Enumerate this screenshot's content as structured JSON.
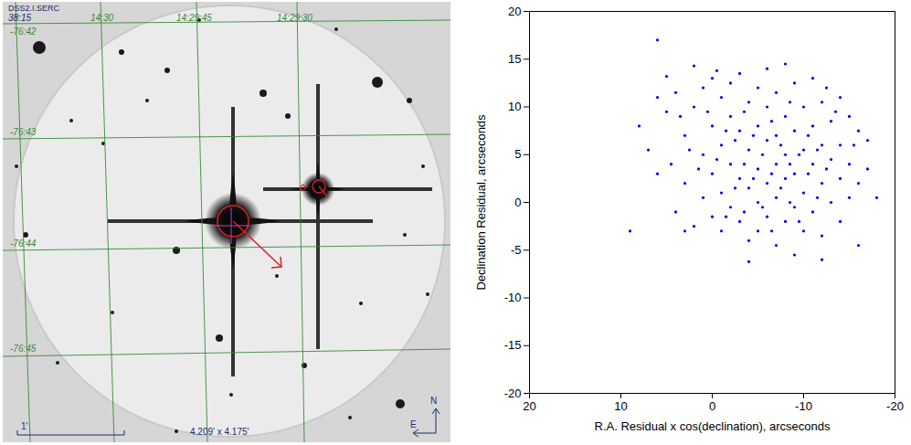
{
  "image_panel": {
    "survey": "DSS2.I.SERC",
    "ra_labels": [
      "38:15",
      "14:30",
      "14:29:45",
      "14:29:30"
    ],
    "dec_labels": [
      "-76:42",
      "-76:43",
      "-76:44",
      "-76:45"
    ],
    "scale_bar": "1'",
    "field_size": "4.209' x 4.175'",
    "compass": [
      "N",
      "E"
    ]
  },
  "chart_data": {
    "type": "scatter",
    "xlabel": "R.A. Residual x cos(declination), arcseconds",
    "ylabel": "Declination Residual, arcseconds",
    "color": "#0000ff",
    "marker": "circle",
    "grid": false,
    "xlim": [
      20,
      -20
    ],
    "ylim": [
      -20,
      20
    ],
    "xticks": [
      20,
      10,
      0,
      -10,
      -20
    ],
    "yticks": [
      -20,
      -15,
      -10,
      -5,
      0,
      5,
      10,
      15,
      20
    ],
    "x": [
      6,
      9,
      -18,
      -16,
      -12,
      -4,
      2,
      -8,
      -17,
      -15,
      5,
      7,
      6,
      5,
      4,
      4,
      3,
      3,
      2,
      2,
      1,
      1,
      1,
      0,
      0,
      0,
      0,
      -1,
      -1,
      -1,
      -1,
      -2,
      -2,
      -2,
      -2,
      -3,
      -3,
      -3,
      -3,
      -4,
      -4,
      -4,
      -4,
      -5,
      -5,
      -5,
      -5,
      -5,
      -6,
      -6,
      -6,
      -6,
      -6,
      -7,
      -7,
      -7,
      -7,
      -7,
      -8,
      -8,
      -8,
      -8,
      -9,
      -9,
      -9,
      -9,
      -9,
      -10,
      -10,
      -10,
      -10,
      -11,
      -11,
      -11,
      -11,
      -12,
      -12,
      -12,
      -12,
      -13,
      -13,
      -13,
      -14,
      -14,
      -14,
      -14,
      -15,
      -15,
      -16,
      -16,
      -17,
      8,
      6,
      3,
      1.5,
      -0.5,
      -2.5,
      -3.5,
      -4.5,
      -5.5,
      -6.5,
      -7.5,
      -8.5,
      -9.5,
      -10.5,
      -11.5,
      -12.5,
      -6.5,
      -3.5,
      -8.5,
      0.5,
      -1.5,
      -4.5,
      -7.5,
      -10.5,
      -13.5,
      2.5,
      4.5,
      -2.5,
      -5.5,
      -8.5,
      -11.5,
      -3.5,
      -6.5,
      -1.5,
      -9.5,
      3.5,
      -12.5,
      -15.5,
      -0.5
    ],
    "y": [
      17,
      -3,
      0.5,
      -4.5,
      -6,
      -6.2,
      14.3,
      14.5,
      6.5,
      9,
      13.2,
      5.5,
      3,
      9.5,
      11.5,
      -1,
      7,
      2,
      10,
      -2.5,
      12,
      5,
      0.5,
      13,
      8,
      3,
      -1.5,
      11,
      6,
      1,
      -3,
      12.5,
      9,
      4,
      -0.5,
      13.5,
      7.5,
      2.5,
      -2,
      10.5,
      5.5,
      1.5,
      -4,
      12,
      8,
      3.5,
      0,
      -3,
      14,
      10,
      6.5,
      2,
      -1.5,
      11.5,
      7,
      4,
      0.5,
      -4.5,
      9,
      5,
      2.5,
      -2,
      12.5,
      7.5,
      3,
      -0.5,
      -5.5,
      10,
      5.5,
      1,
      -3,
      13,
      8,
      4,
      -1,
      10.5,
      6,
      2,
      -3.5,
      8.5,
      4.5,
      0,
      11,
      6,
      2.5,
      -2,
      4,
      0.5,
      7.5,
      2,
      3.5,
      8,
      11,
      -3,
      3.5,
      4.5,
      6.5,
      4,
      7,
      5,
      3,
      6,
      4,
      5,
      3,
      5.5,
      3.5,
      8.5,
      9.5,
      10.5,
      9.5,
      7.5,
      2.5,
      1.5,
      7,
      9.5,
      5.5,
      4,
      1.5,
      -0.5,
      0,
      0.5,
      -1,
      -3,
      -1.5,
      -2,
      9,
      12,
      6,
      13.8
    ]
  }
}
